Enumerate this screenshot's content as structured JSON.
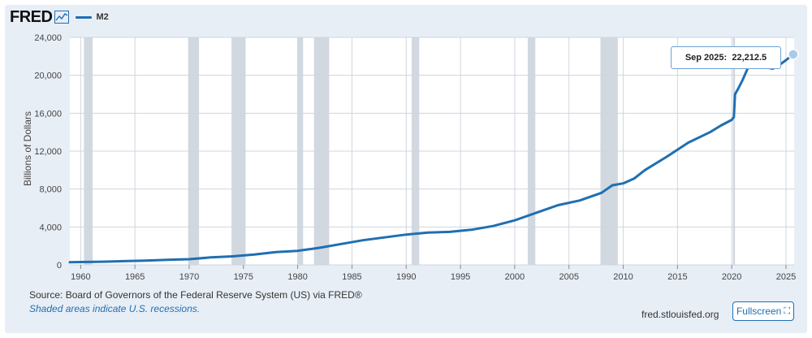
{
  "header": {
    "logo_text": "FRED",
    "legend_label": "M2"
  },
  "tooltip": {
    "label": "Sep 2025:",
    "value": "22,212.5"
  },
  "footer": {
    "source": "Source: Board of Governors of the Federal Reserve System (US) via FRED®",
    "note": "Shaded areas indicate U.S. recessions.",
    "site": "fred.stlouisfed.org",
    "fullscreen_label": "Fullscreen"
  },
  "icons": {
    "logo_spark": "line-chart-icon",
    "fullscreen": "fullscreen-icon"
  },
  "colors": {
    "series": "#1f6fb2",
    "recession_shade": "#d2d8e0",
    "panel": "#e8eef6"
  },
  "chart_data": {
    "type": "line",
    "title": "",
    "xlabel": "",
    "ylabel": "Billions of Dollars",
    "xlim": [
      1959.0,
      2025.75
    ],
    "ylim": [
      0,
      24000
    ],
    "grid": true,
    "yticks": [
      0,
      4000,
      8000,
      12000,
      16000,
      20000,
      24000
    ],
    "ytick_labels": [
      "0",
      "4,000",
      "8,000",
      "12,000",
      "16,000",
      "20,000",
      "24,000"
    ],
    "xticks": [
      1960,
      1965,
      1970,
      1975,
      1980,
      1985,
      1990,
      1995,
      2000,
      2005,
      2010,
      2015,
      2020,
      2025
    ],
    "recessions": [
      [
        1960.3,
        1961.1
      ],
      [
        1969.9,
        1970.9
      ],
      [
        1973.9,
        1975.2
      ],
      [
        1980.0,
        1980.5
      ],
      [
        1981.5,
        1982.9
      ],
      [
        1990.5,
        1991.2
      ],
      [
        2001.2,
        2001.9
      ],
      [
        2007.9,
        2009.5
      ],
      [
        2020.1,
        2020.3
      ]
    ],
    "series": [
      {
        "name": "M2",
        "points": [
          [
            1959.0,
            287
          ],
          [
            1960,
            300
          ],
          [
            1962,
            335
          ],
          [
            1964,
            390
          ],
          [
            1966,
            450
          ],
          [
            1968,
            540
          ],
          [
            1970,
            600
          ],
          [
            1972,
            790
          ],
          [
            1974,
            900
          ],
          [
            1976,
            1100
          ],
          [
            1978,
            1350
          ],
          [
            1980,
            1480
          ],
          [
            1982,
            1800
          ],
          [
            1984,
            2200
          ],
          [
            1986,
            2600
          ],
          [
            1988,
            2900
          ],
          [
            1990,
            3200
          ],
          [
            1992,
            3400
          ],
          [
            1994,
            3480
          ],
          [
            1996,
            3700
          ],
          [
            1998,
            4100
          ],
          [
            2000,
            4700
          ],
          [
            2002,
            5500
          ],
          [
            2004,
            6300
          ],
          [
            2006,
            6800
          ],
          [
            2008,
            7600
          ],
          [
            2009,
            8400
          ],
          [
            2010,
            8600
          ],
          [
            2011,
            9100
          ],
          [
            2012,
            10000
          ],
          [
            2014,
            11400
          ],
          [
            2016,
            12900
          ],
          [
            2018,
            14000
          ],
          [
            2019,
            14700
          ],
          [
            2020.0,
            15300
          ],
          [
            2020.2,
            15600
          ],
          [
            2020.3,
            18000
          ],
          [
            2020.6,
            18600
          ],
          [
            2021.0,
            19500
          ],
          [
            2021.5,
            20800
          ],
          [
            2022.3,
            21600
          ],
          [
            2022.9,
            21500
          ],
          [
            2023.3,
            20800
          ],
          [
            2023.8,
            20700
          ],
          [
            2024.4,
            21100
          ],
          [
            2025.0,
            21600
          ],
          [
            2025.67,
            22212.5
          ]
        ]
      }
    ]
  }
}
